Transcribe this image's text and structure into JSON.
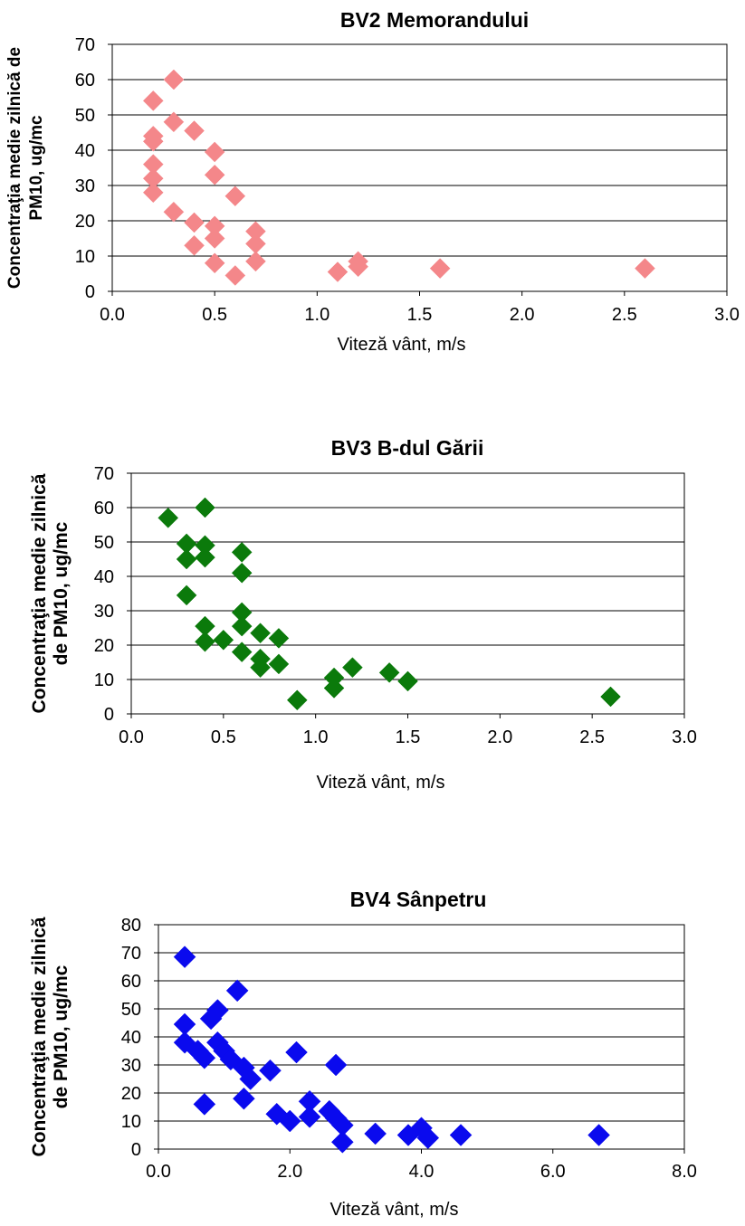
{
  "chart_data": [
    {
      "type": "scatter",
      "title": "BV2 Memorandului",
      "xlabel": "Viteză vânt,  m/s",
      "ylabel": [
        "Concentraţia medie zilnică de",
        "PM10, ug/mc"
      ],
      "xlim": [
        0,
        3
      ],
      "ylim": [
        0,
        70
      ],
      "xticks": [
        "0.0",
        "0.5",
        "1.0",
        "1.5",
        "2.0",
        "2.5",
        "3.0"
      ],
      "yticks": [
        "0",
        "10",
        "20",
        "30",
        "40",
        "50",
        "60",
        "70"
      ],
      "grid": "horizontal",
      "marker": "diamond",
      "color": "#F4878A",
      "points": [
        [
          0.2,
          54
        ],
        [
          0.3,
          60
        ],
        [
          0.3,
          48
        ],
        [
          0.4,
          45.5
        ],
        [
          0.2,
          44
        ],
        [
          0.2,
          42.5
        ],
        [
          0.5,
          39.5
        ],
        [
          0.2,
          36
        ],
        [
          0.2,
          32
        ],
        [
          0.5,
          33
        ],
        [
          0.2,
          28
        ],
        [
          0.6,
          27
        ],
        [
          0.3,
          22.5
        ],
        [
          0.4,
          19.5
        ],
        [
          0.5,
          18.5
        ],
        [
          0.5,
          15
        ],
        [
          0.4,
          13
        ],
        [
          0.7,
          17
        ],
        [
          0.7,
          13.5
        ],
        [
          0.5,
          8
        ],
        [
          0.7,
          8.5
        ],
        [
          0.6,
          4.5
        ],
        [
          1.1,
          5.5
        ],
        [
          1.2,
          7
        ],
        [
          1.2,
          8.5
        ],
        [
          1.6,
          6.5
        ],
        [
          2.6,
          6.5
        ]
      ]
    },
    {
      "type": "scatter",
      "title": "BV3 B-dul Gării",
      "xlabel": "Viteză vânt,  m/s",
      "ylabel": [
        "Concentraţia medie zilnică",
        "de PM10, ug/mc"
      ],
      "xlim": [
        0,
        3
      ],
      "ylim": [
        0,
        70
      ],
      "xticks": [
        "0.0",
        "0.5",
        "1.0",
        "1.5",
        "2.0",
        "2.5",
        "3.0"
      ],
      "yticks": [
        "0",
        "10",
        "20",
        "30",
        "40",
        "50",
        "60",
        "70"
      ],
      "grid": "horizontal",
      "marker": "diamond",
      "color": "#0B7A0B",
      "points": [
        [
          0.2,
          57
        ],
        [
          0.4,
          60
        ],
        [
          0.3,
          49.5
        ],
        [
          0.4,
          49
        ],
        [
          0.3,
          45
        ],
        [
          0.4,
          45.5
        ],
        [
          0.6,
          47
        ],
        [
          0.6,
          41
        ],
        [
          0.3,
          34.5
        ],
        [
          0.6,
          29.5
        ],
        [
          0.4,
          25.5
        ],
        [
          0.6,
          25.5
        ],
        [
          0.7,
          23.5
        ],
        [
          0.8,
          22
        ],
        [
          0.4,
          21
        ],
        [
          0.5,
          21.5
        ],
        [
          0.6,
          18
        ],
        [
          0.7,
          16
        ],
        [
          0.7,
          13.5
        ],
        [
          0.8,
          14.5
        ],
        [
          1.1,
          10.5
        ],
        [
          1.1,
          7.5
        ],
        [
          1.2,
          13.5
        ],
        [
          1.4,
          12
        ],
        [
          1.5,
          9.5
        ],
        [
          0.9,
          4
        ],
        [
          2.6,
          5
        ]
      ]
    },
    {
      "type": "scatter",
      "title": "BV4 Sânpetru",
      "xlabel": "Viteză vânt,  m/s",
      "ylabel": [
        "Concentraţia medie zilnică",
        "de PM10, ug/mc"
      ],
      "xlim": [
        0,
        8
      ],
      "ylim": [
        0,
        80
      ],
      "xticks": [
        "0.0",
        "2.0",
        "4.0",
        "6.0",
        "8.0"
      ],
      "yticks": [
        "0",
        "10",
        "20",
        "30",
        "40",
        "50",
        "60",
        "70",
        "80"
      ],
      "grid": "horizontal",
      "marker": "diamond",
      "color": "#0A0AEE",
      "points": [
        [
          0.4,
          68.5
        ],
        [
          1.2,
          56.5
        ],
        [
          0.9,
          49.5
        ],
        [
          0.8,
          46.5
        ],
        [
          0.4,
          44.5
        ],
        [
          0.4,
          38
        ],
        [
          0.6,
          35
        ],
        [
          0.9,
          38
        ],
        [
          1.0,
          35
        ],
        [
          0.7,
          32.5
        ],
        [
          1.1,
          32
        ],
        [
          1.3,
          29
        ],
        [
          1.4,
          25
        ],
        [
          2.1,
          34.5
        ],
        [
          2.7,
          30
        ],
        [
          1.7,
          28
        ],
        [
          0.7,
          16
        ],
        [
          1.3,
          18
        ],
        [
          1.8,
          12.5
        ],
        [
          2.0,
          10
        ],
        [
          2.3,
          17
        ],
        [
          2.3,
          11.5
        ],
        [
          2.6,
          13.5
        ],
        [
          2.7,
          11
        ],
        [
          2.8,
          8.5
        ],
        [
          2.8,
          2.5
        ],
        [
          3.3,
          5.5
        ],
        [
          3.8,
          5
        ],
        [
          4.0,
          7.5
        ],
        [
          4.1,
          4
        ],
        [
          4.6,
          5
        ],
        [
          6.7,
          5
        ]
      ]
    }
  ]
}
